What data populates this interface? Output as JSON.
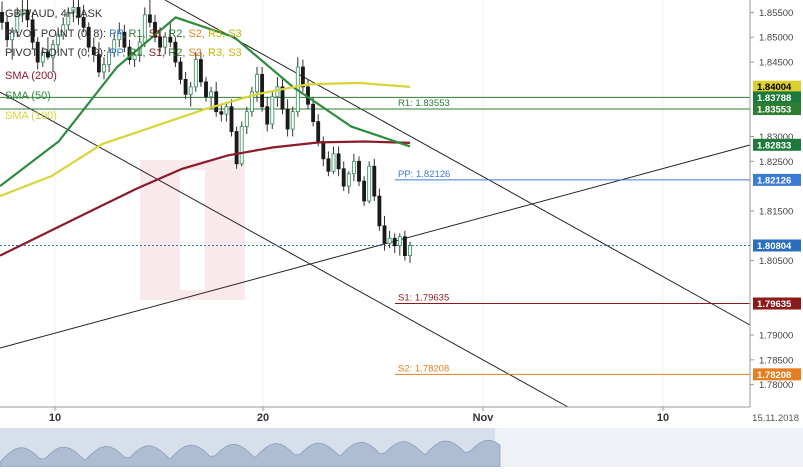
{
  "chart_data": {
    "type": "candlestick",
    "title": "GBP/AUD, 4H, ASK",
    "legend": [
      {
        "prefix": "PIVOT POINT (0, 8): ",
        "items": [
          {
            "label": "PP",
            "color": "#3a7bd5"
          },
          {
            "label": "R1",
            "color": "#2e7d32"
          },
          {
            "label": "S1",
            "color": "#8b1a1a"
          },
          {
            "label": "R2",
            "color": "#2e7d32"
          },
          {
            "label": "S2",
            "color": "#e67e22"
          },
          {
            "label": "R3",
            "color": "#c8b400"
          },
          {
            "label": "S3",
            "color": "#c8b400"
          }
        ]
      },
      {
        "prefix": "PIVOT POINT (0, 9): ",
        "items": [
          {
            "label": "PP",
            "color": "#3a7bd5"
          },
          {
            "label": "R1",
            "color": "#2e7d32"
          },
          {
            "label": "S1",
            "color": "#8b1a1a"
          },
          {
            "label": "R2",
            "color": "#2e7d32"
          },
          {
            "label": "S2",
            "color": "#e67e22"
          },
          {
            "label": "R3",
            "color": "#c8b400"
          },
          {
            "label": "S3",
            "color": "#c8b400"
          }
        ]
      }
    ],
    "indicators": [
      {
        "name": "SMA (200)",
        "color": "#8b1a2b",
        "values": [
          1.806,
          1.8105,
          1.815,
          1.8195,
          1.8235,
          1.8262,
          1.8278,
          1.8288,
          1.829,
          1.8287
        ]
      },
      {
        "name": "SMA (50)",
        "color": "#2e8b3e",
        "values": [
          1.82,
          1.829,
          1.844,
          1.854,
          1.85,
          1.84,
          1.832,
          1.828
        ]
      },
      {
        "name": "SMA (100)",
        "color": "#d8d43a",
        "values": [
          1.818,
          1.822,
          1.8285,
          1.832,
          1.8355,
          1.8385,
          1.8405,
          1.8408,
          1.84
        ]
      }
    ],
    "x_ticks": [
      "10",
      "20",
      "Nov",
      "10"
    ],
    "date_label": "15.11.2018",
    "y_ticks": [
      "1.85500",
      "1.85000",
      "1.84500",
      "1.83000",
      "1.82500",
      "1.81500",
      "1.80500",
      "1.79000",
      "1.78500",
      "1.78000"
    ],
    "ylim": [
      1.7755,
      1.8575
    ],
    "pivot_levels": [
      {
        "label": "R1: 1.83553",
        "value": 1.83553,
        "color": "#2e7d32"
      },
      {
        "label": "PP: 1.82126",
        "value": 1.82126,
        "color": "#3a7bd5"
      },
      {
        "label": "S1: 1.79635",
        "value": 1.79635,
        "color": "#8b1a1a"
      },
      {
        "label": "S2: 1.78208",
        "value": 1.78208,
        "color": "#e67e22"
      }
    ],
    "price_tags": [
      {
        "text": "1.84004",
        "value": 1.84004,
        "bg": "#dcd030",
        "fg": "#000000"
      },
      {
        "text": "1.83788",
        "value": 1.83788,
        "bg": "#1e7a3c",
        "fg": "#ffffff"
      },
      {
        "text": "1.83553",
        "value": 1.83553,
        "bg": "#2e7d32",
        "fg": "#ffffff"
      },
      {
        "text": "1.82833",
        "value": 1.82833,
        "bg": "#1e7a3c",
        "fg": "#ffffff"
      },
      {
        "text": "1.82126",
        "value": 1.82126,
        "bg": "#3a7bd5",
        "fg": "#ffffff"
      },
      {
        "text": "1.80804",
        "value": 1.80804,
        "bg": "#2a6ebd",
        "fg": "#ffffff"
      },
      {
        "text": "1.79635",
        "value": 1.79635,
        "bg": "#8b1a1a",
        "fg": "#ffffff"
      },
      {
        "text": "1.78208",
        "value": 1.78208,
        "bg": "#e67e22",
        "fg": "#ffffff"
      }
    ],
    "current_price": 1.80804,
    "candles": [
      [
        1.855,
        1.8572,
        1.8515,
        1.853
      ],
      [
        1.853,
        1.8545,
        1.848,
        1.8495
      ],
      [
        1.8495,
        1.852,
        1.8455,
        1.851
      ],
      [
        1.851,
        1.856,
        1.85,
        1.8545
      ],
      [
        1.8545,
        1.8575,
        1.853,
        1.8555
      ],
      [
        1.8555,
        1.8575,
        1.852,
        1.8535
      ],
      [
        1.8535,
        1.855,
        1.8475,
        1.849
      ],
      [
        1.849,
        1.85,
        1.8435,
        1.845
      ],
      [
        1.845,
        1.848,
        1.844,
        1.847
      ],
      [
        1.847,
        1.85,
        1.8455,
        1.846
      ],
      [
        1.846,
        1.8495,
        1.843,
        1.8485
      ],
      [
        1.8485,
        1.852,
        1.847,
        1.8505
      ],
      [
        1.8505,
        1.854,
        1.8495,
        1.8525
      ],
      [
        1.8525,
        1.856,
        1.8515,
        1.855
      ],
      [
        1.855,
        1.8575,
        1.853,
        1.856
      ],
      [
        1.856,
        1.8575,
        1.8525,
        1.854
      ],
      [
        1.854,
        1.8565,
        1.851,
        1.852
      ],
      [
        1.852,
        1.853,
        1.847,
        1.848
      ],
      [
        1.848,
        1.85,
        1.845,
        1.8465
      ],
      [
        1.8465,
        1.849,
        1.842,
        1.843
      ],
      [
        1.843,
        1.846,
        1.8415,
        1.8445
      ],
      [
        1.8445,
        1.848,
        1.843,
        1.847
      ],
      [
        1.847,
        1.851,
        1.846,
        1.8495
      ],
      [
        1.8495,
        1.853,
        1.848,
        1.851
      ],
      [
        1.851,
        1.8525,
        1.847,
        1.848
      ],
      [
        1.848,
        1.8495,
        1.8445,
        1.8455
      ],
      [
        1.8455,
        1.8475,
        1.844,
        1.8465
      ],
      [
        1.8465,
        1.85,
        1.845,
        1.849
      ],
      [
        1.849,
        1.856,
        1.848,
        1.8545
      ],
      [
        1.8545,
        1.8575,
        1.852,
        1.853
      ],
      [
        1.853,
        1.8545,
        1.849,
        1.85
      ],
      [
        1.85,
        1.852,
        1.847,
        1.848
      ],
      [
        1.848,
        1.851,
        1.8465,
        1.85
      ],
      [
        1.85,
        1.853,
        1.848,
        1.849
      ],
      [
        1.849,
        1.85,
        1.844,
        1.845
      ],
      [
        1.845,
        1.846,
        1.8405,
        1.8415
      ],
      [
        1.8415,
        1.843,
        1.8375,
        1.8385
      ],
      [
        1.8385,
        1.841,
        1.836,
        1.84
      ],
      [
        1.84,
        1.847,
        1.839,
        1.8455
      ],
      [
        1.8455,
        1.847,
        1.84,
        1.841
      ],
      [
        1.841,
        1.842,
        1.837,
        1.838
      ],
      [
        1.838,
        1.84,
        1.8355,
        1.839
      ],
      [
        1.839,
        1.841,
        1.834,
        1.835
      ],
      [
        1.835,
        1.8365,
        1.833,
        1.8345
      ],
      [
        1.8345,
        1.837,
        1.833,
        1.836
      ],
      [
        1.836,
        1.8375,
        1.83,
        1.831
      ],
      [
        1.831,
        1.832,
        1.8235,
        1.8245
      ],
      [
        1.8245,
        1.833,
        1.824,
        1.832
      ],
      [
        1.832,
        1.836,
        1.8305,
        1.835
      ],
      [
        1.835,
        1.84,
        1.834,
        1.839
      ],
      [
        1.839,
        1.844,
        1.837,
        1.8425
      ],
      [
        1.8425,
        1.844,
        1.835,
        1.836
      ],
      [
        1.836,
        1.838,
        1.831,
        1.8325
      ],
      [
        1.8325,
        1.839,
        1.8315,
        1.838
      ],
      [
        1.838,
        1.842,
        1.836,
        1.84
      ],
      [
        1.84,
        1.8415,
        1.8345,
        1.8355
      ],
      [
        1.8355,
        1.8375,
        1.83,
        1.8315
      ],
      [
        1.8315,
        1.836,
        1.83,
        1.835
      ],
      [
        1.835,
        1.846,
        1.834,
        1.844
      ],
      [
        1.844,
        1.8455,
        1.839,
        1.84
      ],
      [
        1.84,
        1.8415,
        1.8355,
        1.8365
      ],
      [
        1.8365,
        1.838,
        1.832,
        1.833
      ],
      [
        1.833,
        1.8345,
        1.828,
        1.829
      ],
      [
        1.829,
        1.83,
        1.824,
        1.8255
      ],
      [
        1.8255,
        1.827,
        1.822,
        1.823
      ],
      [
        1.823,
        1.828,
        1.8225,
        1.8265
      ],
      [
        1.8265,
        1.828,
        1.822,
        1.8235
      ],
      [
        1.8235,
        1.825,
        1.819,
        1.82
      ],
      [
        1.82,
        1.823,
        1.8185,
        1.8225
      ],
      [
        1.8225,
        1.8265,
        1.821,
        1.825
      ],
      [
        1.825,
        1.826,
        1.82,
        1.821
      ],
      [
        1.821,
        1.822,
        1.816,
        1.817
      ],
      [
        1.817,
        1.825,
        1.8165,
        1.824
      ],
      [
        1.824,
        1.8255,
        1.817,
        1.818
      ],
      [
        1.818,
        1.8195,
        1.811,
        1.812
      ],
      [
        1.812,
        1.814,
        1.807,
        1.8085
      ],
      [
        1.8085,
        1.811,
        1.8075,
        1.8095
      ],
      [
        1.8095,
        1.8105,
        1.8065,
        1.808
      ],
      [
        1.808,
        1.8105,
        1.806,
        1.8098
      ],
      [
        1.8098,
        1.811,
        1.805,
        1.806
      ],
      [
        1.806,
        1.8088,
        1.8045,
        1.808
      ]
    ]
  }
}
